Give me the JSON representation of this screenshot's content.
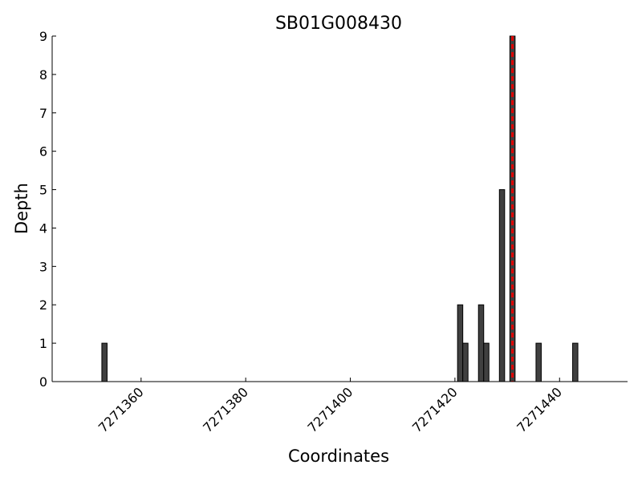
{
  "chart_data": {
    "type": "bar",
    "title": "SB01G008430",
    "xlabel": "Coordinates",
    "ylabel": "Depth",
    "x": [
      7271353,
      7271421,
      7271422,
      7271425,
      7271426,
      7271429,
      7271431,
      7271436,
      7271443
    ],
    "values": [
      1,
      2,
      1,
      2,
      1,
      5,
      9,
      1,
      1
    ],
    "color": "#404040",
    "vline": 7271431,
    "vline_color": "#e00000",
    "xlim": [
      7271343,
      7271453
    ],
    "xticks": [
      7271360,
      7271380,
      7271400,
      7271420,
      7271440
    ],
    "ylim": [
      0,
      9
    ],
    "yticks": [
      0,
      1,
      2,
      3,
      4,
      5,
      6,
      7,
      8,
      9
    ]
  }
}
